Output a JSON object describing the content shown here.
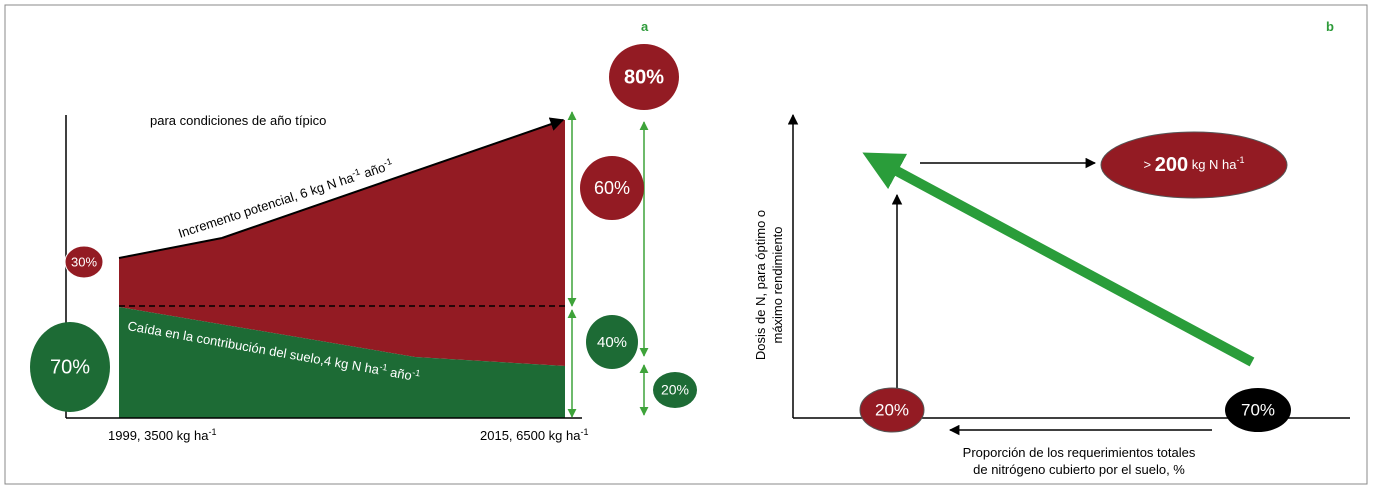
{
  "panel_a": {
    "label": "a",
    "note": "para condiciones de año típico",
    "upper_label": {
      "text": "Incremento potencial, 6 kg N ha",
      "sup1": "-1",
      "mid": " año",
      "sup2": "-1"
    },
    "lower_label": {
      "text": "Caída en la contribución del suelo,4 kg N ha",
      "sup1": "-1",
      "mid": " año",
      "sup2": "-1"
    },
    "x_start": {
      "text": "1999, 3500 kg ha",
      "sup": "-1"
    },
    "x_end": {
      "text": "2015, 6500 kg ha",
      "sup": "-1"
    },
    "bubbles": [
      "30%",
      "70%",
      "60%",
      "40%",
      "80%",
      "20%"
    ]
  },
  "panel_b": {
    "label": "b",
    "y_label": [
      "Dosis de N, para óptimo o",
      "máximo rendimiento"
    ],
    "x_label": [
      "Proporción de los requerimientos totales",
      "de nitrógeno cubierto por el suelo, %"
    ],
    "dose_bubble": {
      "prefix": ">",
      "value": "200",
      "unit": " kg N ha",
      "sup": "-1"
    },
    "bubbles": [
      "20%",
      "70%"
    ]
  }
}
